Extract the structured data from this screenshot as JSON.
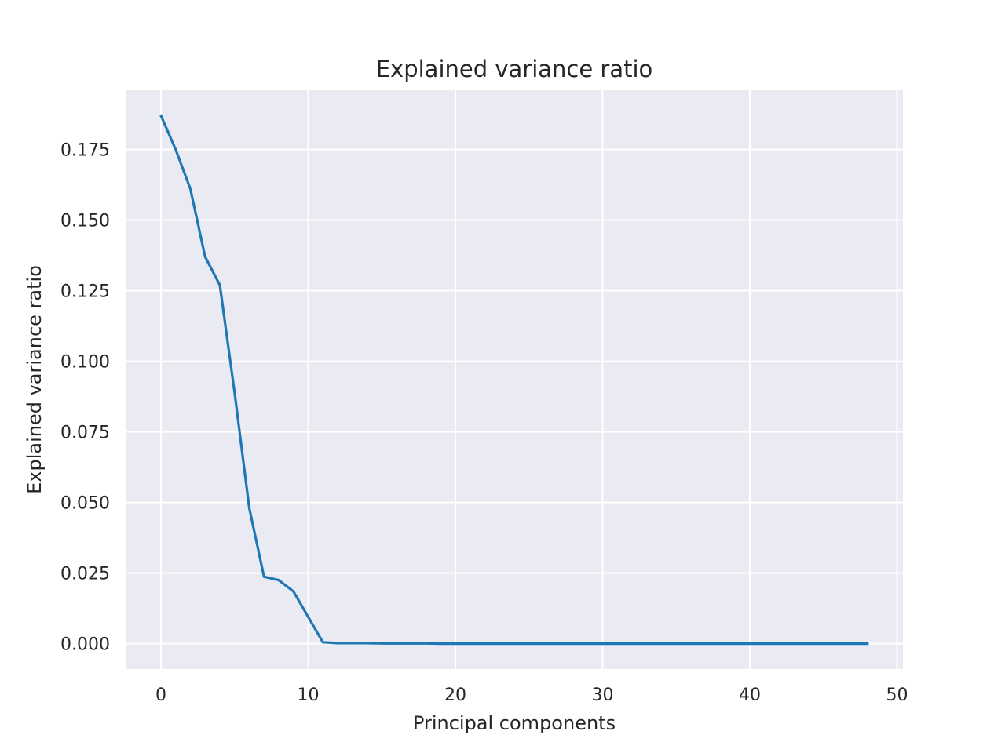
{
  "chart_data": {
    "type": "line",
    "title": "Explained variance ratio",
    "xlabel": "Principal components",
    "ylabel": "Explained variance ratio",
    "xlim": [
      -2.4,
      50.4
    ],
    "ylim": [
      -0.009,
      0.196
    ],
    "xticks": [
      0,
      10,
      20,
      30,
      40,
      50
    ],
    "xtick_labels": [
      "0",
      "10",
      "20",
      "30",
      "40",
      "50"
    ],
    "yticks": [
      0.0,
      0.025,
      0.05,
      0.075,
      0.1,
      0.125,
      0.15,
      0.175
    ],
    "ytick_labels": [
      "0.000",
      "0.025",
      "0.050",
      "0.075",
      "0.100",
      "0.125",
      "0.150",
      "0.175"
    ],
    "grid": true,
    "background_color": "#eaeaf2",
    "grid_color": "#ffffff",
    "line_color": "#1f77b4",
    "series": [
      {
        "x": [
          0,
          1,
          2,
          3,
          4,
          5,
          6,
          7,
          8,
          9,
          10,
          11,
          12,
          13,
          14,
          15,
          16,
          17,
          18,
          19,
          20,
          21,
          22,
          23,
          24,
          25,
          26,
          27,
          28,
          29,
          30,
          31,
          32,
          33,
          34,
          35,
          36,
          37,
          38,
          39,
          40,
          41,
          42,
          43,
          44,
          45,
          46,
          47,
          48
        ],
        "values": [
          0.187,
          0.175,
          0.161,
          0.137,
          0.127,
          0.089,
          0.048,
          0.0237,
          0.0225,
          0.0185,
          0.0095,
          0.0005,
          0.0002,
          0.0002,
          0.0002,
          0.0001,
          0.0001,
          0.0001,
          0.0001,
          0,
          0,
          0,
          0,
          0,
          0,
          0,
          0,
          0,
          0,
          0,
          0,
          0,
          0,
          0,
          0,
          0,
          0,
          0,
          0,
          0,
          0,
          0,
          0,
          0,
          0,
          0,
          0,
          0,
          0
        ]
      }
    ]
  }
}
